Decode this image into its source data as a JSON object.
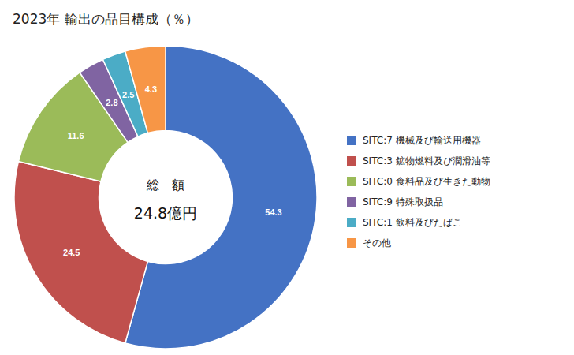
{
  "chart_data": {
    "type": "donut",
    "title": "2023年 輸出の品目構成（％）",
    "categories": [
      "SITC:7 機械及び輸送用機器",
      "SITC:3 鉱物燃料及び潤滑油等",
      "SITC:0 食料品及び生きた動物",
      "SITC:9 特殊取扱品",
      "SITC:1 飲料及びたばこ",
      "その他"
    ],
    "values": [
      54.3,
      24.5,
      11.6,
      2.8,
      2.5,
      4.3
    ],
    "colors": [
      "#4472C4",
      "#C0504D",
      "#9BBB59",
      "#8064A2",
      "#4BACC6",
      "#F79646"
    ],
    "data_labels": true,
    "legend": "right",
    "annotations": [
      "総　額",
      "24.8億円"
    ]
  }
}
